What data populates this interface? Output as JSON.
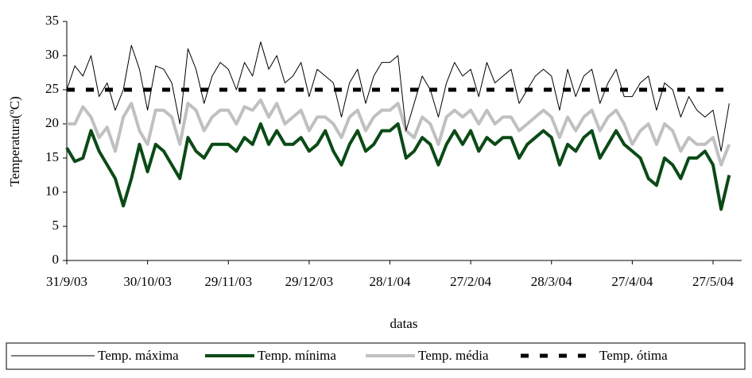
{
  "chart_data": {
    "type": "line",
    "xlabel": "datas",
    "ylabel": "Temperatura(ºC)",
    "categories": [
      "31/9/03",
      null,
      null,
      null,
      null,
      null,
      null,
      null,
      null,
      null,
      "30/10/03",
      null,
      null,
      null,
      null,
      null,
      null,
      null,
      null,
      null,
      "29/11/03",
      null,
      null,
      null,
      null,
      null,
      null,
      null,
      null,
      null,
      "29/12/03",
      null,
      null,
      null,
      null,
      null,
      null,
      null,
      null,
      null,
      "28/1/04",
      null,
      null,
      null,
      null,
      null,
      null,
      null,
      null,
      null,
      "27/2/04",
      null,
      null,
      null,
      null,
      null,
      null,
      null,
      null,
      null,
      "28/3/04",
      null,
      null,
      null,
      null,
      null,
      null,
      null,
      null,
      null,
      "27/4/04",
      null,
      null,
      null,
      null,
      null,
      null,
      null,
      null,
      null,
      "27/5/04",
      null,
      null
    ],
    "series": [
      {
        "name": "Temp. máxima",
        "color": "#000000",
        "width": 1,
        "style": "solid",
        "values": [
          25,
          28.5,
          27,
          30,
          24,
          26,
          22,
          25,
          31.5,
          28,
          22,
          28.5,
          28,
          26,
          20,
          31,
          28,
          23,
          27,
          29,
          28,
          25,
          29,
          27,
          32,
          28,
          30,
          26,
          27,
          29,
          24,
          28,
          27,
          26,
          21,
          26,
          28,
          23,
          27,
          29,
          29,
          30,
          19,
          23,
          27,
          25,
          21,
          26,
          29,
          27,
          28,
          24,
          29,
          26,
          27,
          28,
          23,
          25,
          27,
          28,
          27,
          22,
          28,
          24,
          27,
          28,
          23,
          26,
          28,
          24,
          24,
          26,
          27,
          22,
          26,
          25,
          21,
          24,
          22,
          21,
          22,
          16,
          23
        ]
      },
      {
        "name": "Temp. mínima",
        "color": "#0b4a16",
        "width": 4,
        "style": "solid",
        "values": [
          16.5,
          14.5,
          15,
          19,
          16,
          14,
          12,
          8,
          12,
          17,
          13,
          17,
          16,
          14,
          12,
          18,
          16,
          15,
          17,
          17,
          17,
          16,
          18,
          17,
          20,
          17,
          19,
          17,
          17,
          18,
          16,
          17,
          19,
          16,
          14,
          17,
          19,
          16,
          17,
          19,
          19,
          20,
          15,
          16,
          18,
          17,
          14,
          17,
          19,
          17,
          19,
          16,
          18,
          17,
          18,
          18,
          15,
          17,
          18,
          19,
          18,
          14,
          17,
          16,
          18,
          19,
          15,
          17,
          19,
          17,
          16,
          15,
          12,
          11,
          15,
          14,
          12,
          15,
          15,
          16,
          14,
          7.5,
          12.5
        ]
      },
      {
        "name": "Temp. média",
        "color": "#c0c0c0",
        "width": 4,
        "style": "solid",
        "values": [
          20,
          20,
          22.5,
          21,
          18,
          19.5,
          16,
          21,
          23,
          19,
          17,
          22,
          22,
          21,
          17,
          23,
          22,
          19,
          21,
          22,
          22,
          20,
          22.5,
          22,
          23.5,
          21,
          23,
          20,
          21,
          22,
          19,
          21,
          21,
          20,
          18,
          21,
          22,
          19,
          21,
          22,
          22,
          23,
          19,
          18,
          21,
          20,
          17,
          21,
          22,
          21,
          22,
          20,
          22,
          20,
          21,
          21,
          19,
          20,
          21,
          22,
          21,
          18,
          21,
          19,
          21,
          22,
          19,
          21,
          22,
          20,
          17,
          19,
          20,
          17,
          20,
          19,
          16,
          18,
          17,
          17,
          18,
          14,
          17
        ]
      },
      {
        "name": "Temp. ótima",
        "color": "#000000",
        "width": 5,
        "style": "dashed",
        "values": [
          25,
          25,
          25,
          25,
          25,
          25,
          25,
          25,
          25,
          25,
          25,
          25,
          25,
          25,
          25,
          25,
          25,
          25,
          25,
          25,
          25,
          25,
          25,
          25,
          25,
          25,
          25,
          25,
          25,
          25,
          25,
          25,
          25,
          25,
          25,
          25,
          25,
          25,
          25,
          25,
          25,
          25,
          25,
          25,
          25,
          25,
          25,
          25,
          25,
          25,
          25,
          25,
          25,
          25,
          25,
          25,
          25,
          25,
          25,
          25,
          25,
          25,
          25,
          25,
          25,
          25,
          25,
          25,
          25,
          25,
          25,
          25,
          25,
          25,
          25,
          25,
          25,
          25,
          25,
          25,
          25,
          25,
          25
        ]
      }
    ],
    "ylim": [
      0,
      35
    ],
    "yticks": [
      0,
      5,
      10,
      15,
      20,
      25,
      30,
      35
    ]
  }
}
